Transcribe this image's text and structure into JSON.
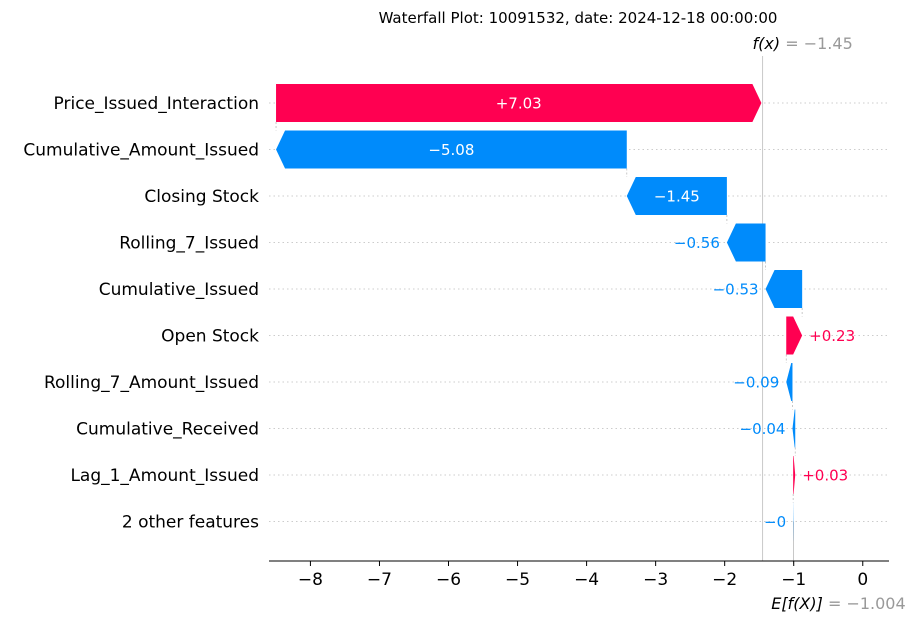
{
  "chart_data": {
    "type": "waterfall",
    "title": "Waterfall Plot: 10091532, date: 2024-12-18 00:00:00",
    "base_value": -1.004,
    "base_label_main": "E[f(X)]",
    "base_label_value": " = −1.004",
    "output_value": -1.45,
    "output_label_main": "f(x)",
    "output_label_value": " = −1.45",
    "xlim": [
      -8.6,
      0.38
    ],
    "xticks": [
      -8,
      -7,
      -6,
      -5,
      -4,
      -3,
      -2,
      -1,
      0
    ],
    "xtick_labels": [
      "−8",
      "−7",
      "−6",
      "−5",
      "−4",
      "−3",
      "−2",
      "−1",
      "0"
    ],
    "features": [
      {
        "name": "Price_Issued_Interaction",
        "value": 7.03,
        "label": "+7.03"
      },
      {
        "name": "Cumulative_Amount_Issued",
        "value": -5.08,
        "label": "−5.08"
      },
      {
        "name": "Closing Stock",
        "value": -1.45,
        "label": "−1.45"
      },
      {
        "name": "Rolling_7_Issued",
        "value": -0.56,
        "label": "−0.56"
      },
      {
        "name": "Cumulative_Issued",
        "value": -0.53,
        "label": "−0.53"
      },
      {
        "name": "Open Stock",
        "value": 0.23,
        "label": "+0.23"
      },
      {
        "name": "Rolling_7_Amount_Issued",
        "value": -0.09,
        "label": "−0.09"
      },
      {
        "name": "Cumulative_Received",
        "value": -0.04,
        "label": "−0.04"
      },
      {
        "name": "Lag_1_Amount_Issued",
        "value": 0.03,
        "label": "+0.03"
      },
      {
        "name": "2 other features",
        "value": -0.004,
        "label": "−0"
      }
    ],
    "colors": {
      "positive": "#ff0051",
      "negative": "#008bfb",
      "annotation": "#999999",
      "grid": "#cccccc"
    }
  }
}
